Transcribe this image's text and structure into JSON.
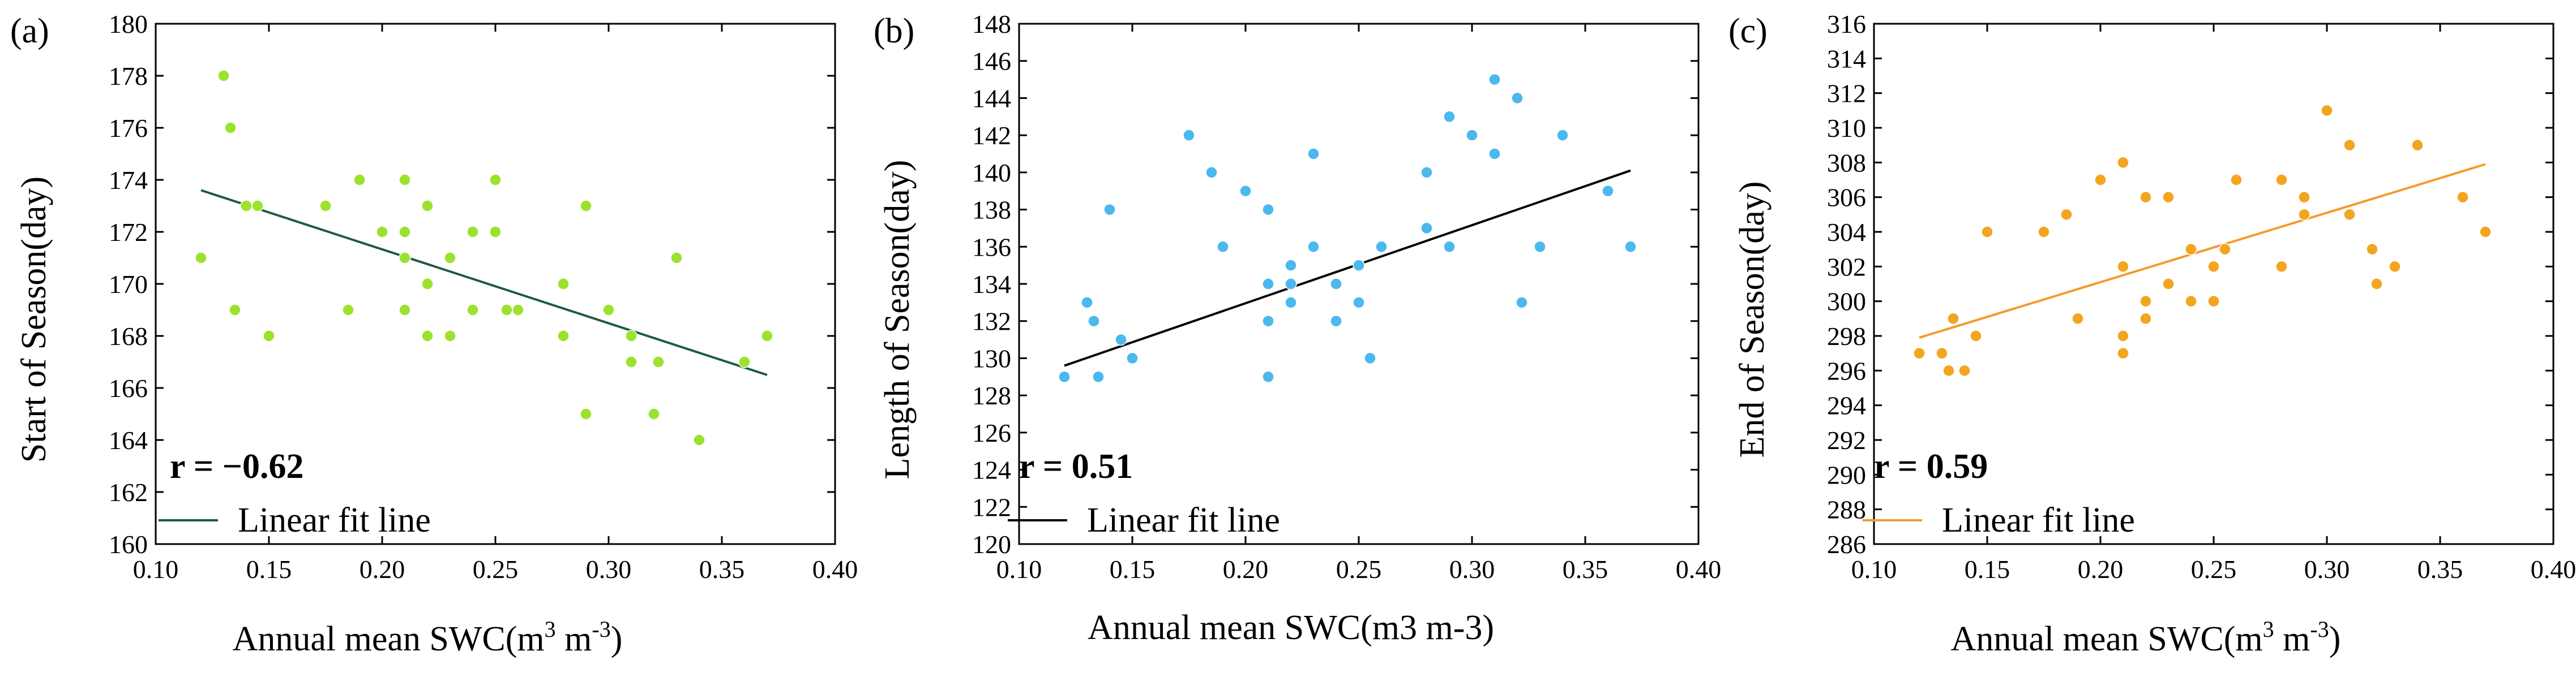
{
  "chart_data": [
    {
      "type": "scatter",
      "panel_label": "(a)",
      "ylabel": "Start of Season(day)",
      "xlabel_main": "Annual mean SWC(m",
      "xlabel_sup1": "3",
      "xlabel_mid": " m",
      "xlabel_sup2": "-3",
      "xlabel_end": ")",
      "xlim": [
        0.1,
        0.4
      ],
      "ylim": [
        160,
        180
      ],
      "xticks": [
        "0.10",
        "0.15",
        "0.20",
        "0.25",
        "0.30",
        "0.35",
        "0.40"
      ],
      "yticks": [
        "160",
        "162",
        "164",
        "166",
        "168",
        "170",
        "172",
        "174",
        "176",
        "178",
        "180"
      ],
      "r_label": "r = −0.62",
      "legend_label": "Linear fit line",
      "point_color": "#9be22f",
      "line_color": "#1f5a3f",
      "fit": {
        "x0": 0.12,
        "y0": 173.6,
        "x1": 0.37,
        "y1": 166.5
      },
      "points": [
        [
          0.12,
          171
        ],
        [
          0.13,
          178
        ],
        [
          0.133,
          176
        ],
        [
          0.135,
          169
        ],
        [
          0.14,
          173
        ],
        [
          0.145,
          173
        ],
        [
          0.15,
          168
        ],
        [
          0.175,
          173
        ],
        [
          0.185,
          169
        ],
        [
          0.19,
          174
        ],
        [
          0.2,
          172
        ],
        [
          0.21,
          174
        ],
        [
          0.21,
          172
        ],
        [
          0.21,
          171
        ],
        [
          0.21,
          169
        ],
        [
          0.22,
          173
        ],
        [
          0.22,
          170
        ],
        [
          0.22,
          168
        ],
        [
          0.23,
          171
        ],
        [
          0.23,
          168
        ],
        [
          0.24,
          172
        ],
        [
          0.24,
          169
        ],
        [
          0.25,
          174
        ],
        [
          0.25,
          172
        ],
        [
          0.255,
          169
        ],
        [
          0.26,
          169
        ],
        [
          0.28,
          170
        ],
        [
          0.28,
          168
        ],
        [
          0.29,
          173
        ],
        [
          0.29,
          165
        ],
        [
          0.3,
          169
        ],
        [
          0.31,
          168
        ],
        [
          0.31,
          167
        ],
        [
          0.32,
          165
        ],
        [
          0.322,
          167
        ],
        [
          0.33,
          171
        ],
        [
          0.34,
          164
        ],
        [
          0.36,
          167
        ],
        [
          0.37,
          168
        ]
      ]
    },
    {
      "type": "scatter",
      "panel_label": "(b)",
      "ylabel": "Length of Season(day)",
      "xlabel_main": "Annual mean SWC(m3 m-3)",
      "xlabel_sup1": "",
      "xlabel_mid": "",
      "xlabel_sup2": "",
      "xlabel_end": "",
      "xlim": [
        0.1,
        0.4
      ],
      "ylim": [
        120,
        148
      ],
      "xticks": [
        "0.10",
        "0.15",
        "0.20",
        "0.25",
        "0.30",
        "0.35",
        "0.40"
      ],
      "yticks": [
        "120",
        "122",
        "124",
        "126",
        "128",
        "130",
        "132",
        "134",
        "136",
        "138",
        "140",
        "142",
        "144",
        "146",
        "148"
      ],
      "r_label": "r = 0.51",
      "legend_label": "Linear fit line",
      "point_color": "#4bb8ee",
      "line_color": "#000000",
      "fit": {
        "x0": 0.12,
        "y0": 129.6,
        "x1": 0.37,
        "y1": 140.1
      },
      "points": [
        [
          0.12,
          129
        ],
        [
          0.13,
          133
        ],
        [
          0.133,
          132
        ],
        [
          0.135,
          129
        ],
        [
          0.14,
          138
        ],
        [
          0.145,
          131
        ],
        [
          0.15,
          130
        ],
        [
          0.175,
          142
        ],
        [
          0.185,
          140
        ],
        [
          0.19,
          136
        ],
        [
          0.2,
          139
        ],
        [
          0.21,
          138
        ],
        [
          0.21,
          134
        ],
        [
          0.21,
          132
        ],
        [
          0.21,
          129
        ],
        [
          0.22,
          135
        ],
        [
          0.22,
          134
        ],
        [
          0.22,
          133
        ],
        [
          0.23,
          141
        ],
        [
          0.23,
          136
        ],
        [
          0.24,
          134
        ],
        [
          0.24,
          132
        ],
        [
          0.25,
          135
        ],
        [
          0.25,
          133
        ],
        [
          0.255,
          130
        ],
        [
          0.26,
          136
        ],
        [
          0.28,
          140
        ],
        [
          0.28,
          137
        ],
        [
          0.29,
          143
        ],
        [
          0.29,
          136
        ],
        [
          0.3,
          142
        ],
        [
          0.31,
          145
        ],
        [
          0.31,
          141
        ],
        [
          0.32,
          144
        ],
        [
          0.322,
          133
        ],
        [
          0.33,
          136
        ],
        [
          0.34,
          142
        ],
        [
          0.36,
          139
        ],
        [
          0.37,
          136
        ]
      ]
    },
    {
      "type": "scatter",
      "panel_label": "(c)",
      "ylabel": "End of Season(day)",
      "xlabel_main": "Annual mean SWC(m",
      "xlabel_sup1": "3",
      "xlabel_mid": " m",
      "xlabel_sup2": "-3",
      "xlabel_end": ")",
      "xlim": [
        0.1,
        0.4
      ],
      "ylim": [
        286,
        316
      ],
      "xticks": [
        "0.10",
        "0.15",
        "0.20",
        "0.25",
        "0.30",
        "0.35",
        "0.40"
      ],
      "yticks": [
        "286",
        "288",
        "290",
        "292",
        "294",
        "296",
        "298",
        "300",
        "302",
        "304",
        "306",
        "308",
        "310",
        "312",
        "314",
        "316"
      ],
      "r_label": "r = 0.59",
      "legend_label": "Linear fit line",
      "point_color": "#f3a51f",
      "line_color": "#f39a2e",
      "fit": {
        "x0": 0.12,
        "y0": 297.9,
        "x1": 0.37,
        "y1": 307.9
      },
      "points": [
        [
          0.12,
          297
        ],
        [
          0.13,
          297
        ],
        [
          0.133,
          296
        ],
        [
          0.135,
          299
        ],
        [
          0.14,
          296
        ],
        [
          0.145,
          298
        ],
        [
          0.15,
          304
        ],
        [
          0.175,
          304
        ],
        [
          0.185,
          305
        ],
        [
          0.19,
          299
        ],
        [
          0.2,
          307
        ],
        [
          0.21,
          308
        ],
        [
          0.21,
          302
        ],
        [
          0.21,
          298
        ],
        [
          0.21,
          297
        ],
        [
          0.22,
          306
        ],
        [
          0.22,
          300
        ],
        [
          0.22,
          299
        ],
        [
          0.23,
          306
        ],
        [
          0.23,
          301
        ],
        [
          0.24,
          303
        ],
        [
          0.24,
          300
        ],
        [
          0.25,
          302
        ],
        [
          0.25,
          300
        ],
        [
          0.255,
          303
        ],
        [
          0.26,
          307
        ],
        [
          0.28,
          307
        ],
        [
          0.28,
          302
        ],
        [
          0.29,
          306
        ],
        [
          0.29,
          305
        ],
        [
          0.3,
          311
        ],
        [
          0.31,
          309
        ],
        [
          0.31,
          305
        ],
        [
          0.32,
          303
        ],
        [
          0.322,
          301
        ],
        [
          0.33,
          302
        ],
        [
          0.34,
          309
        ],
        [
          0.36,
          306
        ],
        [
          0.37,
          304
        ]
      ]
    }
  ]
}
